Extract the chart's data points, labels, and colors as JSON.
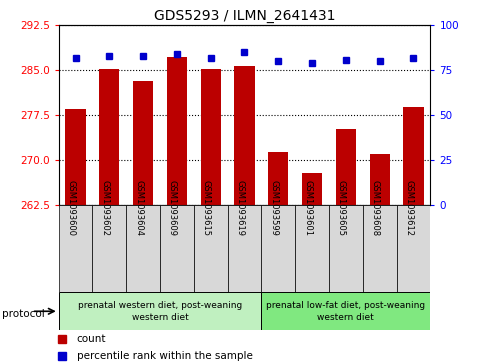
{
  "title": "GDS5293 / ILMN_2641431",
  "samples": [
    "GSM1093600",
    "GSM1093602",
    "GSM1093604",
    "GSM1093609",
    "GSM1093615",
    "GSM1093619",
    "GSM1093599",
    "GSM1093601",
    "GSM1093605",
    "GSM1093608",
    "GSM1093612"
  ],
  "counts": [
    278.5,
    285.2,
    283.2,
    287.2,
    285.3,
    285.8,
    271.3,
    267.8,
    275.2,
    271.0,
    278.8
  ],
  "percentiles": [
    82,
    83,
    83,
    84,
    82,
    85,
    80,
    79,
    81,
    80,
    82
  ],
  "ylim_left": [
    262.5,
    292.5
  ],
  "ylim_right": [
    0,
    100
  ],
  "yticks_left": [
    262.5,
    270.0,
    277.5,
    285.0,
    292.5
  ],
  "yticks_right": [
    0,
    25,
    50,
    75,
    100
  ],
  "bar_color": "#bb0000",
  "dot_color": "#0000cc",
  "group1_label": "prenatal western diet, post-weaning\nwestern diet",
  "group2_label": "prenatal low-fat diet, post-weaning\nwestern diet",
  "group1_count": 6,
  "group2_count": 5,
  "protocol_label": "protocol",
  "legend_count": "count",
  "legend_percentile": "percentile rank within the sample",
  "bg_group1": "#c0f0c0",
  "bg_group2": "#80e880",
  "bg_xticklabels": "#d8d8d8",
  "title_fontsize": 10,
  "tick_fontsize": 7.5,
  "label_fontsize": 7
}
